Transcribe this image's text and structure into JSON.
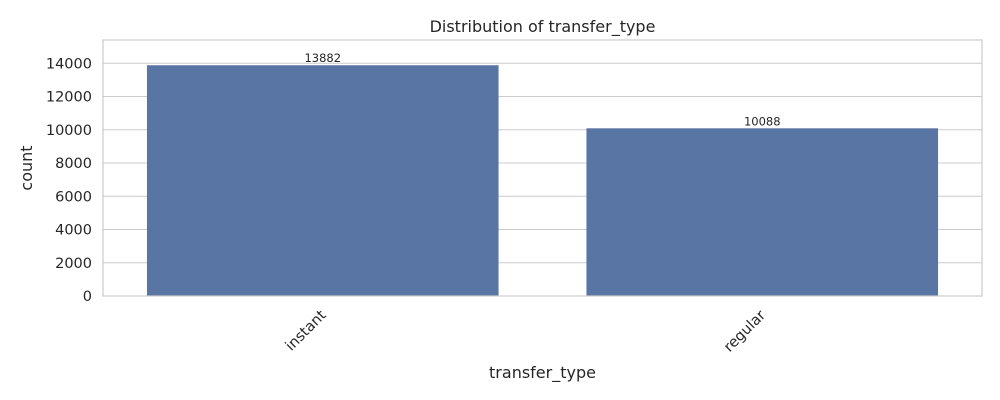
{
  "chart_data": {
    "type": "bar",
    "title": "Distribution of transfer_type",
    "xlabel": "transfer_type",
    "ylabel": "count",
    "categories": [
      "instant",
      "regular"
    ],
    "values": [
      13882,
      10088
    ],
    "data_labels": [
      "13882",
      "10088"
    ],
    "ylim": [
      0,
      15400
    ],
    "yticks": [
      0,
      2000,
      4000,
      6000,
      8000,
      10000,
      12000,
      14000
    ],
    "ytick_labels": [
      "0",
      "2000",
      "4000",
      "6000",
      "8000",
      "10000",
      "12000",
      "14000"
    ],
    "xtick_rotation": "45 degrees",
    "grid": true,
    "legend": "none",
    "colors": {
      "bar": "#5975a4",
      "grid": "#cccccc",
      "frame": "#cccccc",
      "background": "#ffffff"
    }
  }
}
